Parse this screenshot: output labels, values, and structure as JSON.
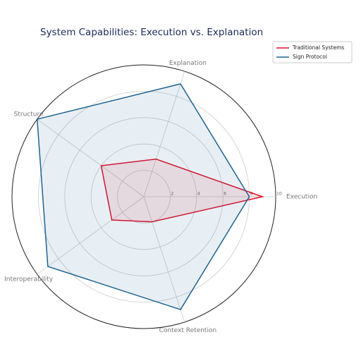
{
  "chart_data": {
    "type": "radar",
    "title": "System Capabilities: Execution vs. Explanation",
    "categories": [
      "Execution",
      "Explanation",
      "Structure",
      "Interoperability",
      "Context Retention"
    ],
    "series": [
      {
        "name": "Traditional Systems",
        "color": "#e0102a",
        "values": [
          9,
          3,
          4,
          3,
          2
        ]
      },
      {
        "name": "Sign Protocol",
        "color": "#1f6391",
        "values": [
          8,
          9,
          10,
          9,
          9
        ]
      }
    ],
    "ylim": [
      0,
      10
    ],
    "yticks": [
      2,
      4,
      6,
      8,
      10
    ],
    "grid": true,
    "legend": "upper right"
  }
}
